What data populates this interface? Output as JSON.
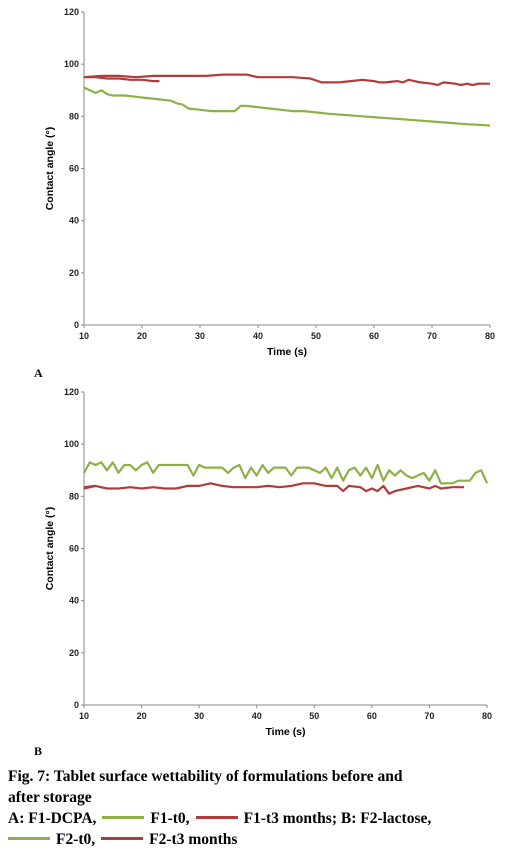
{
  "chart_data": [
    {
      "type": "line",
      "panel": "A",
      "xlabel": "Time (s)",
      "ylabel": "Contact angle (°)",
      "xlim": [
        10,
        80
      ],
      "ylim": [
        0,
        120
      ],
      "xticks": [
        10,
        20,
        30,
        40,
        50,
        60,
        70,
        80
      ],
      "yticks": [
        0,
        20,
        40,
        60,
        80,
        100,
        120
      ],
      "series": [
        {
          "color": "#8db047",
          "x": [
            10,
            11,
            12,
            13,
            14,
            15,
            17,
            19,
            21,
            23,
            25,
            26,
            27,
            28,
            30,
            32,
            34,
            36,
            37,
            38,
            40,
            42,
            44,
            46,
            48,
            50,
            52,
            55,
            58,
            61,
            64,
            67,
            70,
            73,
            76,
            80
          ],
          "y": [
            91,
            90,
            89,
            90,
            88.5,
            88,
            88,
            87.5,
            87,
            86.5,
            86,
            85,
            84.5,
            83,
            82.5,
            82,
            82,
            82,
            84,
            84,
            83.5,
            83,
            82.5,
            82,
            82,
            81.5,
            81,
            80.5,
            80,
            79.5,
            79,
            78.5,
            78,
            77.5,
            77,
            76.5
          ]
        },
        {
          "color": "#b33b3b",
          "x": [
            10,
            12,
            14,
            16,
            18,
            20,
            22,
            23
          ],
          "y": [
            95,
            95,
            94.5,
            94.5,
            94,
            94,
            93.5,
            93.5
          ]
        },
        {
          "color": "#b33b3b",
          "x": [
            10,
            13,
            16,
            19,
            22,
            25,
            28,
            31,
            34,
            37,
            38,
            40,
            43,
            46,
            49,
            51,
            52,
            54,
            56,
            58,
            60,
            61,
            62,
            64,
            65,
            66,
            68,
            70,
            71,
            72,
            74,
            75,
            76,
            77,
            78,
            80
          ],
          "y": [
            95,
            95.5,
            95.5,
            95,
            95.5,
            95.5,
            95.5,
            95.5,
            96,
            96,
            96,
            95,
            95,
            95,
            94.5,
            93,
            93,
            93,
            93.5,
            94,
            93.5,
            93,
            93,
            93.5,
            93,
            94,
            93,
            92.5,
            92,
            93,
            92.5,
            92,
            92.5,
            92,
            92.5,
            92.5
          ]
        }
      ]
    },
    {
      "type": "line",
      "panel": "B",
      "xlabel": "Time (s)",
      "ylabel": "Contact angle (°)",
      "xlim": [
        10,
        80
      ],
      "ylim": [
        0,
        120
      ],
      "xticks": [
        10,
        20,
        30,
        40,
        50,
        60,
        70,
        80
      ],
      "yticks": [
        0,
        20,
        40,
        60,
        80,
        100,
        120
      ],
      "series": [
        {
          "color": "#8db047",
          "x": [
            10,
            11,
            12,
            13,
            14,
            15,
            16,
            17,
            18,
            19,
            20,
            21,
            22,
            23,
            24,
            25,
            26,
            27,
            28,
            29,
            30,
            31,
            32,
            33,
            34,
            35,
            36,
            37,
            38,
            39,
            40,
            41,
            42,
            43,
            44,
            45,
            46,
            47,
            48,
            49,
            50,
            51,
            52,
            53,
            54,
            55,
            56,
            57,
            58,
            59,
            60,
            61,
            62,
            63,
            64,
            65,
            66,
            67,
            68,
            69,
            70,
            71,
            72,
            73,
            74,
            75,
            76,
            77,
            78,
            79,
            80
          ],
          "y": [
            89,
            93,
            92,
            93,
            90,
            93,
            89,
            92,
            92,
            90,
            92,
            93,
            89,
            92,
            92,
            92,
            92,
            92,
            92,
            88,
            92,
            91,
            91,
            91,
            91,
            89,
            91,
            92,
            87,
            91,
            88,
            92,
            89,
            91,
            91,
            91,
            88,
            91,
            91,
            91,
            90,
            89,
            91,
            87,
            91,
            86,
            90,
            91,
            88,
            91,
            87,
            92,
            86,
            90,
            88,
            90,
            88,
            87,
            88,
            89,
            86,
            90,
            85,
            85,
            85,
            86,
            86,
            86,
            89,
            90,
            85
          ]
        },
        {
          "color": "#b33b3b",
          "x": [
            10,
            12,
            14,
            16,
            18,
            20,
            22,
            24,
            26,
            28,
            30,
            32,
            34,
            36,
            38,
            40,
            42,
            44,
            46,
            48,
            50,
            52,
            54,
            55,
            56,
            58,
            59,
            60,
            61,
            62,
            63,
            64,
            66,
            68,
            70,
            71,
            72,
            74,
            76
          ],
          "y": [
            83,
            84,
            83,
            83,
            83.5,
            83,
            83.5,
            83,
            83,
            84,
            84,
            85,
            84,
            83.5,
            83.5,
            83.5,
            84,
            83.5,
            84,
            85,
            85,
            84,
            84,
            82,
            84,
            83.5,
            82,
            83,
            82,
            84,
            81,
            82,
            83,
            84,
            83,
            84,
            83,
            83.5,
            83.5
          ]
        },
        {
          "color": "#b33b3b",
          "x": [
            10,
            12
          ],
          "y": [
            83.5,
            84
          ]
        }
      ]
    }
  ],
  "panels": {
    "a_letter": "A",
    "b_letter": "B"
  },
  "caption": {
    "title_line1": "Fig. 7: Tablet surface wettability of formulations before and",
    "title_line2": "after storage",
    "a_prefix": "A: F1-DCPA,",
    "a_green": "F1-t0,",
    "a_red": "F1-t3 months; B: F2-lactose,",
    "b_green": "F2-t0,",
    "b_red": "F2-t3 months"
  }
}
